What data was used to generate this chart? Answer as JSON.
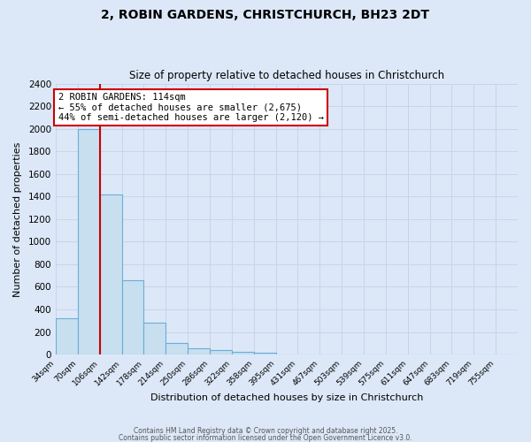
{
  "title": "2, ROBIN GARDENS, CHRISTCHURCH, BH23 2DT",
  "subtitle": "Size of property relative to detached houses in Christchurch",
  "xlabel": "Distribution of detached houses by size in Christchurch",
  "ylabel": "Number of detached properties",
  "bar_labels": [
    "34sqm",
    "70sqm",
    "106sqm",
    "142sqm",
    "178sqm",
    "214sqm",
    "250sqm",
    "286sqm",
    "322sqm",
    "358sqm",
    "395sqm",
    "431sqm",
    "467sqm",
    "503sqm",
    "539sqm",
    "575sqm",
    "611sqm",
    "647sqm",
    "683sqm",
    "719sqm",
    "755sqm"
  ],
  "bar_values": [
    320,
    2000,
    1420,
    660,
    280,
    100,
    55,
    40,
    25,
    15,
    0,
    0,
    0,
    0,
    0,
    0,
    0,
    0,
    0,
    0,
    0
  ],
  "bar_color": "#c8dff0",
  "bar_edge_color": "#6aaed6",
  "vline_x": 2,
  "vline_color": "#cc0000",
  "annotation_text": "2 ROBIN GARDENS: 114sqm\n← 55% of detached houses are smaller (2,675)\n44% of semi-detached houses are larger (2,120) →",
  "annotation_box_color": "#ffffff",
  "annotation_box_edge": "#cc0000",
  "ylim": [
    0,
    2400
  ],
  "yticks": [
    0,
    200,
    400,
    600,
    800,
    1000,
    1200,
    1400,
    1600,
    1800,
    2000,
    2200,
    2400
  ],
  "grid_color": "#c8d4e8",
  "bg_color": "#dce8f8",
  "footer1": "Contains HM Land Registry data © Crown copyright and database right 2025.",
  "footer2": "Contains public sector information licensed under the Open Government Licence v3.0."
}
